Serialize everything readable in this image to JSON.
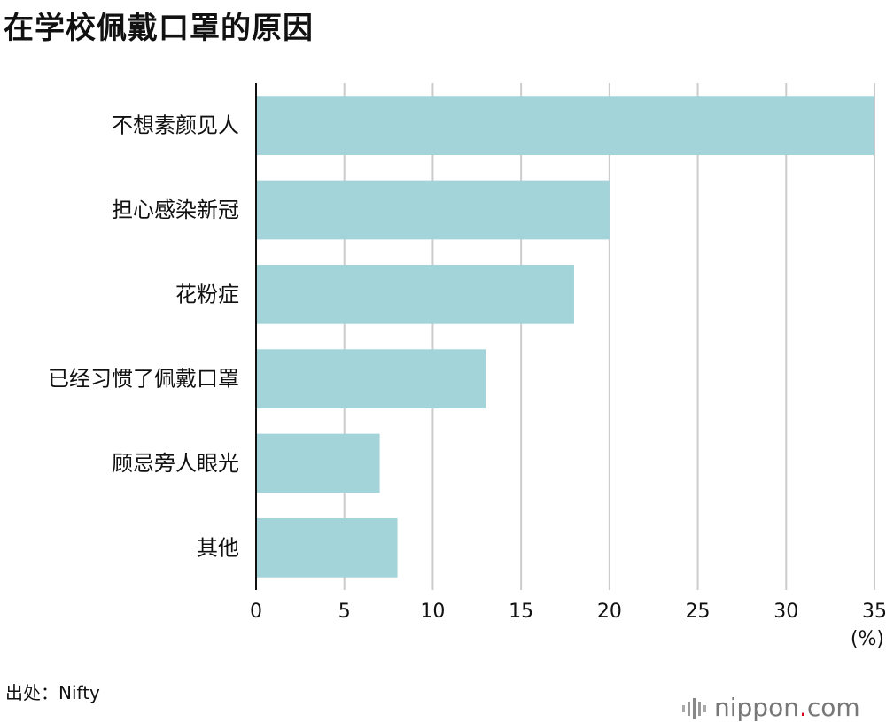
{
  "title": "在学校佩戴口罩的原因",
  "source": "出处：Nifty",
  "logo": {
    "name": "nippon",
    "dot": ".",
    "suffix": "com"
  },
  "colors": {
    "bar": "#a3d4da",
    "grid": "#cccccc",
    "axis": "#111111",
    "logo_dot": "#d0021b"
  },
  "chart_data": {
    "type": "bar",
    "orientation": "horizontal",
    "title": "在学校佩戴口罩的原因",
    "categories": [
      "不想素颜见人",
      "担心感染新冠",
      "花粉症",
      "已经习惯了佩戴口罩",
      "顾忌旁人眼光",
      "其他"
    ],
    "values": [
      35,
      20,
      18,
      13,
      7,
      8
    ],
    "xlim": [
      0,
      35
    ],
    "xticks": [
      0,
      5,
      10,
      15,
      20,
      25,
      30,
      35
    ],
    "xunit": "(%)",
    "grid": true
  }
}
